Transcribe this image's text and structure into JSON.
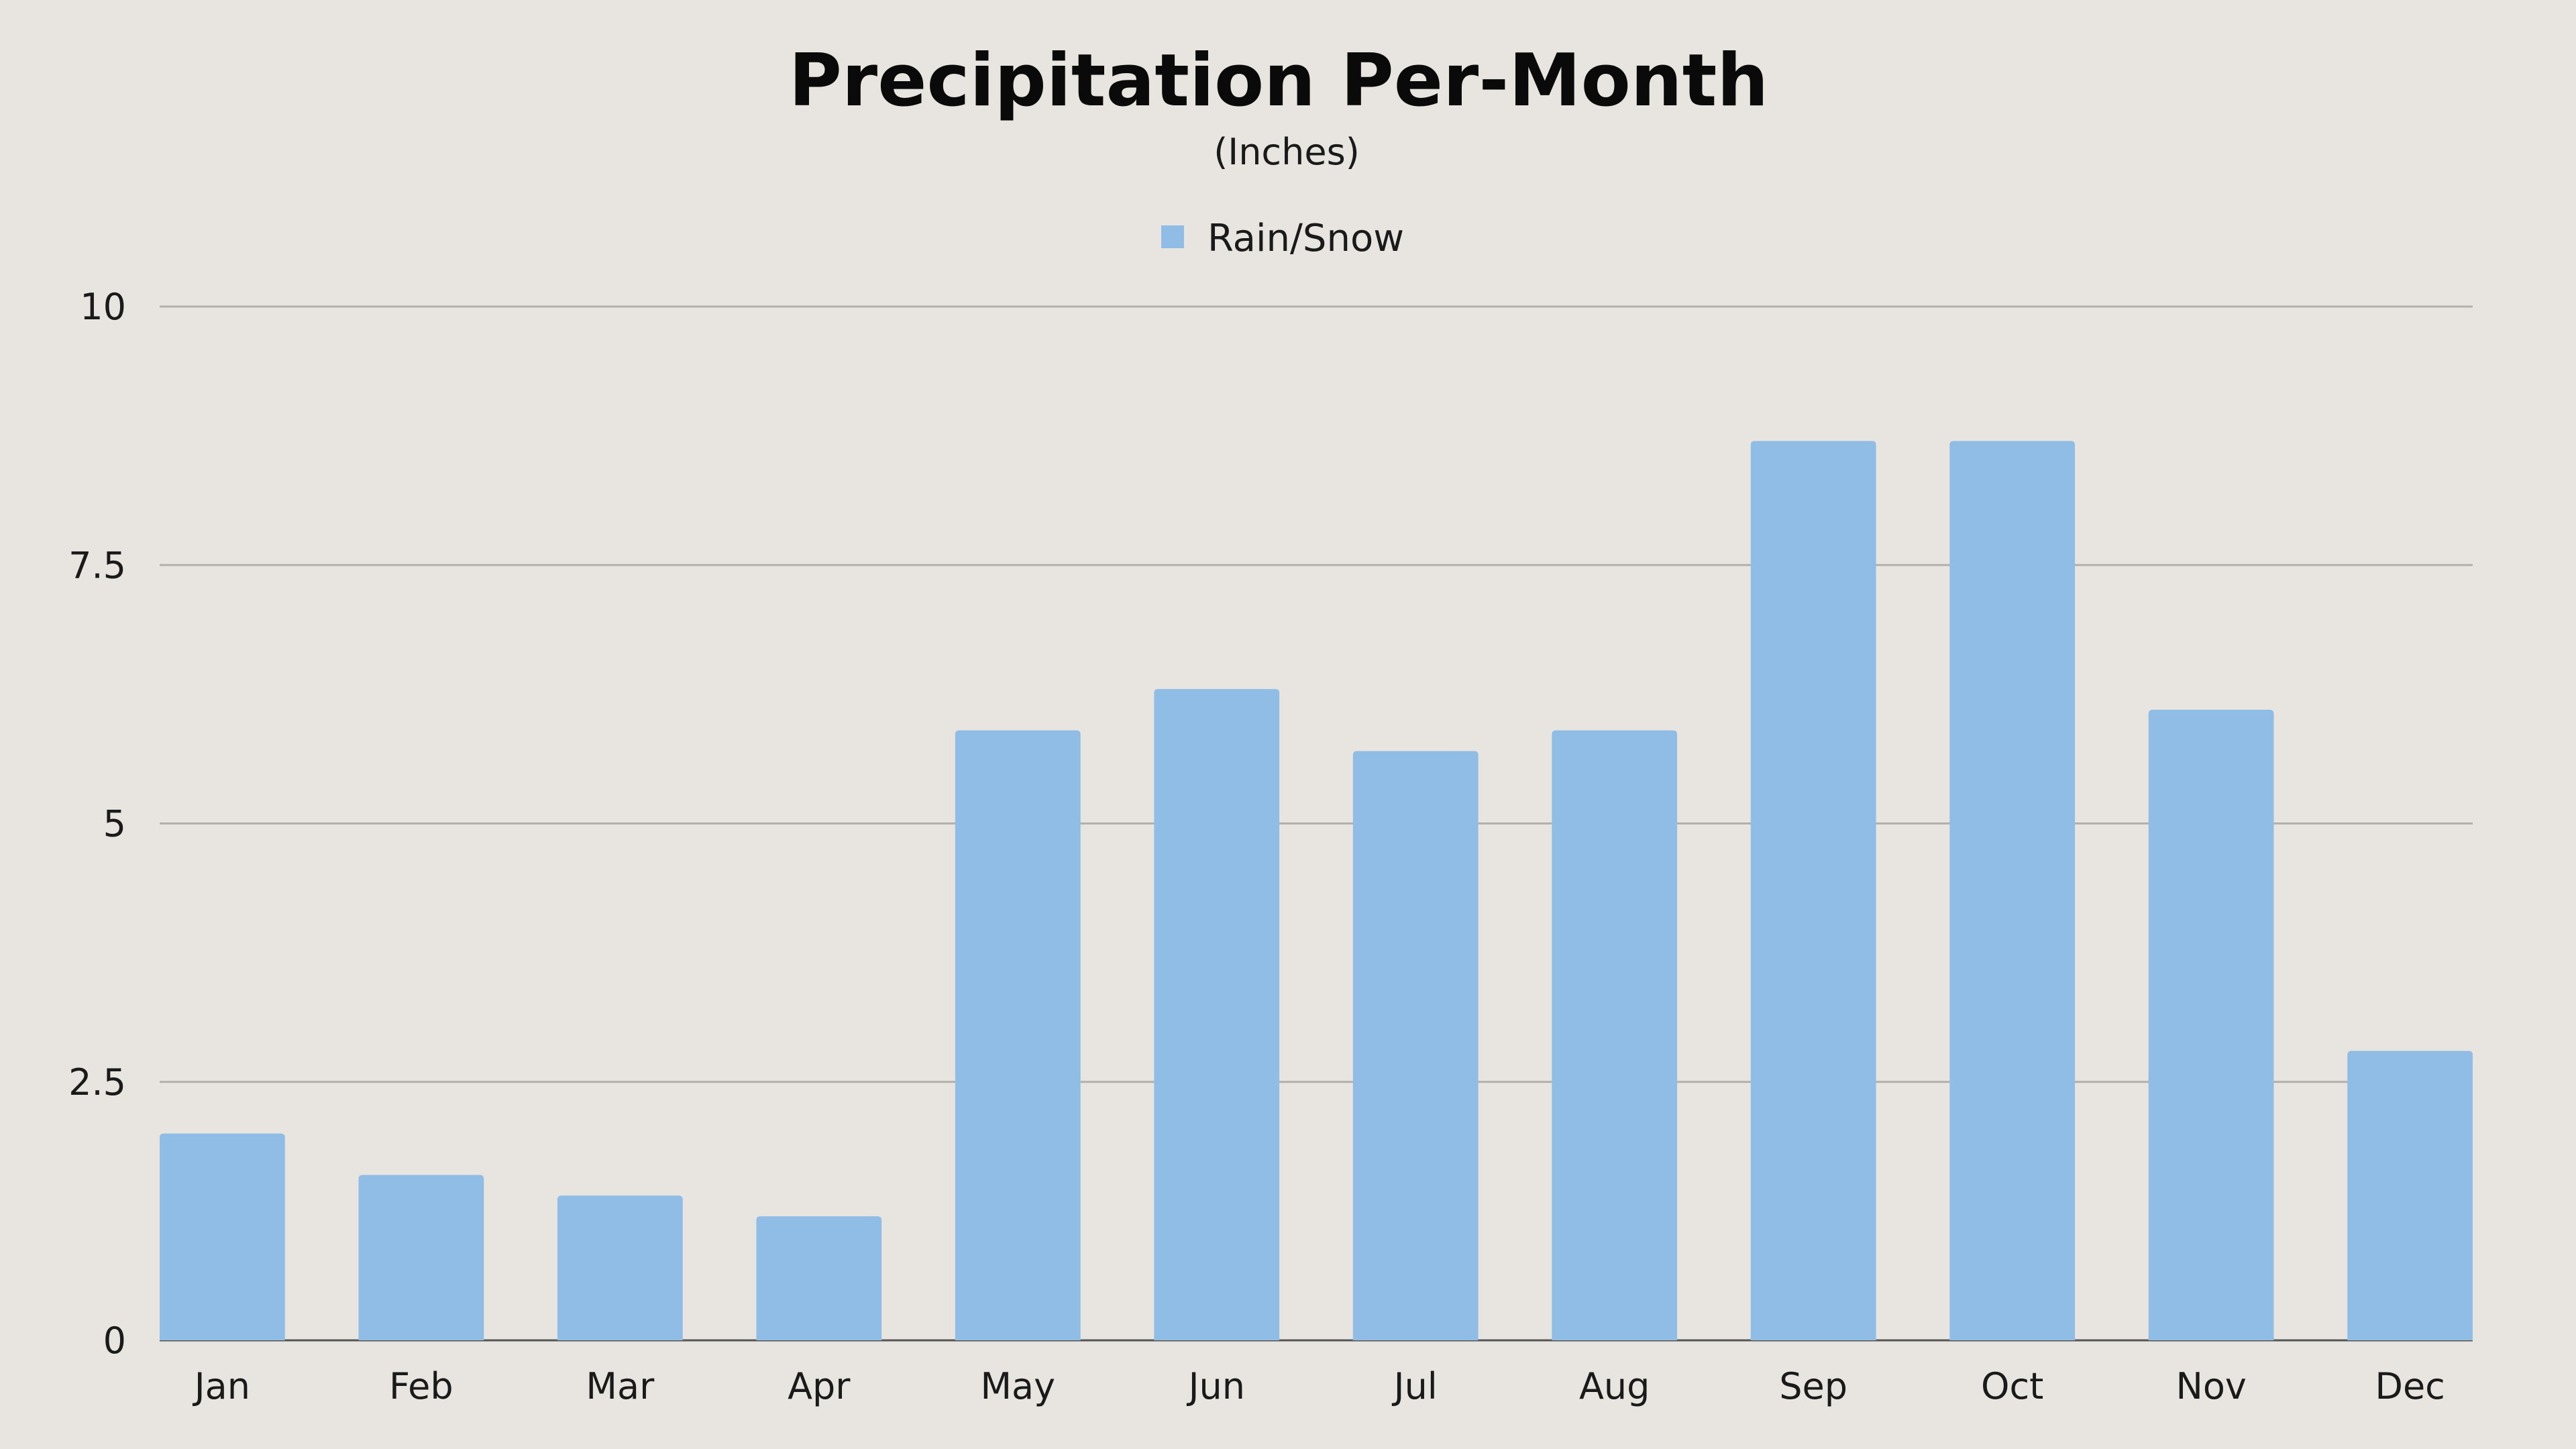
{
  "chart_data": {
    "type": "bar",
    "title": "Precipitation Per-Month",
    "subtitle": "(Inches)",
    "categories": [
      "Jan",
      "Feb",
      "Mar",
      "Apr",
      "May",
      "Jun",
      "Jul",
      "Aug",
      "Sep",
      "Oct",
      "Nov",
      "Dec"
    ],
    "series": [
      {
        "name": "Rain/Snow",
        "color": "#90bde6",
        "values": [
          2.0,
          1.6,
          1.4,
          1.2,
          5.9,
          6.3,
          5.7,
          5.9,
          8.7,
          8.7,
          6.1,
          2.8
        ]
      }
    ],
    "ylim": [
      0,
      10
    ],
    "yticks": [
      0,
      2.5,
      5,
      7.5,
      10
    ],
    "ytick_labels": [
      "0",
      "2.5",
      "5",
      "7.5",
      "10"
    ],
    "grid": true,
    "legend_position": "top-center"
  },
  "colors": {
    "background": "#e8e4df",
    "gridline": "#b3b0ab",
    "bar": "#90bde6"
  }
}
